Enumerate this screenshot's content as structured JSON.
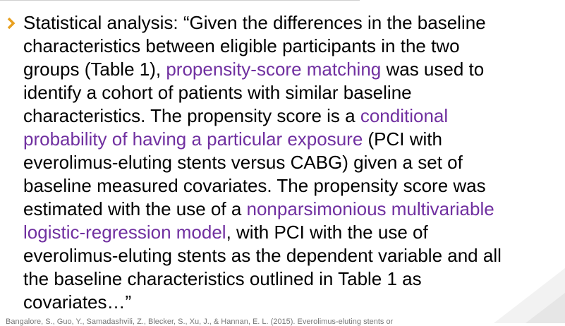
{
  "bullet": {
    "lines": [
      [
        {
          "text": "Statistical analysis: “Given the differences in the baseline",
          "color": "#000000"
        }
      ],
      [
        {
          "text": "characteristics between eligible participants in the two",
          "color": "#000000"
        }
      ],
      [
        {
          "text": "groups (Table 1), ",
          "color": "#000000"
        },
        {
          "text": "propensity-score matching",
          "color": "#7030a0"
        },
        {
          "text": " was used to",
          "color": "#000000"
        }
      ],
      [
        {
          "text": "identify a cohort of patients with similar baseline",
          "color": "#000000"
        }
      ],
      [
        {
          "text": "characteristics. The propensity score is a ",
          "color": "#000000"
        },
        {
          "text": "conditional",
          "color": "#7030a0"
        }
      ],
      [
        {
          "text": "probability of having a particular exposure",
          "color": "#7030a0"
        },
        {
          "text": " (PCI with",
          "color": "#000000"
        }
      ],
      [
        {
          "text": "everolimus-eluting stents versus CABG) given a set of",
          "color": "#000000"
        }
      ],
      [
        {
          "text": "baseline measured covariates. The propensity score was",
          "color": "#000000"
        }
      ],
      [
        {
          "text": "estimated with the use of a ",
          "color": "#000000"
        },
        {
          "text": "nonparsimonious multivariable",
          "color": "#7030a0"
        }
      ],
      [
        {
          "text": "logistic-regression model",
          "color": "#7030a0"
        },
        {
          "text": ", with PCI with the use of",
          "color": "#000000"
        }
      ],
      [
        {
          "text": "everolimus-eluting stents as the dependent variable and all",
          "color": "#000000"
        }
      ],
      [
        {
          "text": "the baseline characteristics outlined in Table 1 as",
          "color": "#000000"
        }
      ],
      [
        {
          "text": "covariates…”",
          "color": "#000000"
        }
      ]
    ]
  },
  "footnote": "Bangalore, S., Guo, Y., Samadashvili, Z., Blecker, S., Xu, J., & Hannan, E. L. (2015). Everolimus-eluting stents or"
}
